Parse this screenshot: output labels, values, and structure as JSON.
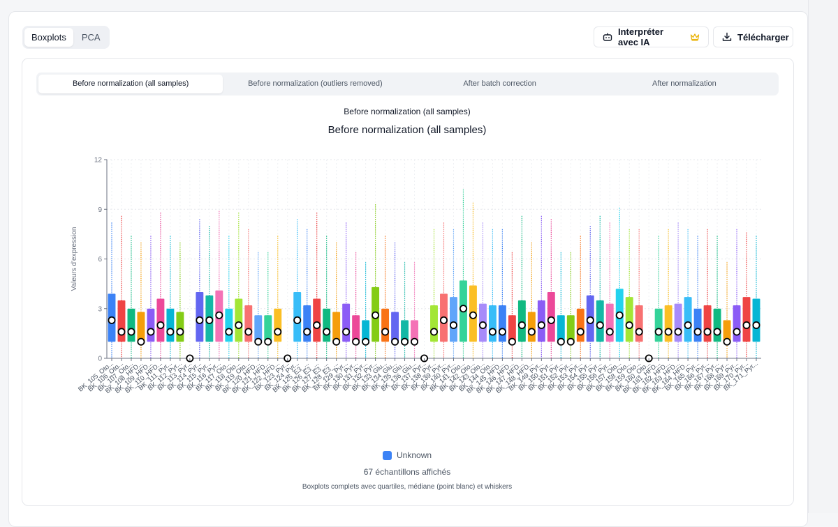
{
  "view_tabs": [
    {
      "label": "Boxplots",
      "active": true
    },
    {
      "label": "PCA",
      "active": false
    }
  ],
  "actions": {
    "interpret_label": "Interpréter avec IA",
    "download_label": "Télécharger",
    "crown_color": "#eab308"
  },
  "sub_tabs": [
    {
      "label": "Before normalization (all samples)",
      "active": true
    },
    {
      "label": "Before normalization (outliers removed)",
      "active": false
    },
    {
      "label": "After batch correction",
      "active": false
    },
    {
      "label": "After normalization",
      "active": false
    }
  ],
  "chart_header": {
    "small_title": "Before normalization (all samples)"
  },
  "legend": {
    "label": "Unknown",
    "color": "#3b82f6"
  },
  "footer": {
    "count": "67 échantillons affichés",
    "note": "Boxplots complets avec quartiles, médiane (point blanc) et whiskers"
  },
  "chart_data": {
    "type": "boxplot",
    "title": "Before normalization (all samples)",
    "xlabel": "",
    "ylabel": "Valeurs d'expression",
    "ylim": [
      0,
      12
    ],
    "yticks": [
      0,
      3,
      6,
      9,
      12
    ],
    "grid": true,
    "legend_position": "bottom",
    "categories": [
      "BK_105_Oto...",
      "BK_106_Oto...",
      "BK_107_Oto...",
      "BK_108_HFD...",
      "BK_109_HFD...",
      "BK_110_HFD...",
      "BK_111_Pyr...",
      "BK_112_Pyr...",
      "BK_113_Pyr...",
      "BK_114_Pyr...",
      "BK_115_Pyr...",
      "BK_116_Pyr...",
      "BK_117_Oto...",
      "BK_118_Oto...",
      "BK_119_Oto...",
      "BK_120_HFD...",
      "BK_121_HFD...",
      "BK_122_HFD...",
      "BK_123_Pyr...",
      "BK_124_Pyr...",
      "BK_125_E3_...",
      "BK_126_E3_...",
      "BK_127_E3_...",
      "BK_128_E3_...",
      "BK_129_Pyr...",
      "BK_130_Pyr...",
      "BK_131_Pyr...",
      "BK_132_Pyr...",
      "BK_133_Glu...",
      "BK_134_Glu...",
      "BK_135_Glu...",
      "BK_136_Glu...",
      "BK_137_Pyr...",
      "BK_138_Pyr...",
      "BK_139_Pyr...",
      "BK_140_Pyr...",
      "BK_141_Oto...",
      "BK_142_Oto...",
      "BK_143_Oto...",
      "BK_144_Oto...",
      "BK_145_HFD...",
      "BK_146_HFD...",
      "BK_147_HFD...",
      "BK_148_HFD...",
      "BK_149_Pyr...",
      "BK_150_Pyr...",
      "BK_151_Pyr...",
      "BK_152_Pyr...",
      "BK_153_Pyr...",
      "BK_154_Pyr...",
      "BK_155_Pyr...",
      "BK_156_Pyr...",
      "BK_157_Oto...",
      "BK_158_Oto...",
      "BK_159_Oto...",
      "BK_160_Oto...",
      "BK_161_HFD...",
      "BK_162_HFD...",
      "BK_163_HFD...",
      "BK_164_HFD...",
      "BK_165_Pyr...",
      "BK_166_Pyr...",
      "BK_167_Pyr...",
      "BK_168_Pyr...",
      "BK_169_Pyr...",
      "BK_170_Pyr...",
      "BK_171_Pyr..."
    ],
    "series": [
      {
        "boxes": [
          {
            "min": 0,
            "q1": 1.0,
            "median": 2.3,
            "q3": 3.9,
            "max": 8.2,
            "color": "#3b82f6"
          },
          {
            "min": 0,
            "q1": 1.0,
            "median": 1.6,
            "q3": 3.5,
            "max": 8.6,
            "color": "#ef4444"
          },
          {
            "min": 0,
            "q1": 1.0,
            "median": 1.6,
            "q3": 3.0,
            "max": 7.4,
            "color": "#10b981"
          },
          {
            "min": 0,
            "q1": 1.0,
            "median": 1.0,
            "q3": 2.8,
            "max": 7.0,
            "color": "#f59e0b"
          },
          {
            "min": 0,
            "q1": 1.0,
            "median": 1.6,
            "q3": 3.0,
            "max": 7.4,
            "color": "#8b5cf6"
          },
          {
            "min": 0,
            "q1": 1.0,
            "median": 2.0,
            "q3": 3.6,
            "max": 8.8,
            "color": "#ec4899"
          },
          {
            "min": 0,
            "q1": 1.0,
            "median": 1.6,
            "q3": 3.0,
            "max": 7.4,
            "color": "#06b6d4"
          },
          {
            "min": 0,
            "q1": 1.0,
            "median": 1.6,
            "q3": 2.8,
            "max": 7.0,
            "color": "#84cc16"
          },
          {
            "min": 0,
            "q1": 0,
            "median": 0,
            "q3": 0,
            "max": 0,
            "color": "#f97316"
          },
          {
            "min": 0,
            "q1": 1.0,
            "median": 2.3,
            "q3": 4.0,
            "max": 8.4,
            "color": "#6366f1"
          },
          {
            "min": 0,
            "q1": 1.0,
            "median": 2.3,
            "q3": 3.8,
            "max": 8.0,
            "color": "#14b8a6"
          },
          {
            "min": 0,
            "q1": 1.0,
            "median": 2.6,
            "q3": 4.1,
            "max": 8.9,
            "color": "#f472b6"
          },
          {
            "min": 0,
            "q1": 1.0,
            "median": 1.6,
            "q3": 3.0,
            "max": 7.4,
            "color": "#22d3ee"
          },
          {
            "min": 0,
            "q1": 1.0,
            "median": 2.0,
            "q3": 3.6,
            "max": 8.8,
            "color": "#a3e635"
          },
          {
            "min": 0,
            "q1": 1.0,
            "median": 1.6,
            "q3": 3.2,
            "max": 7.8,
            "color": "#f87171"
          },
          {
            "min": 0,
            "q1": 1.0,
            "median": 1.0,
            "q3": 2.6,
            "max": 6.4,
            "color": "#60a5fa"
          },
          {
            "min": 0,
            "q1": 1.0,
            "median": 1.0,
            "q3": 2.6,
            "max": 6.4,
            "color": "#34d399"
          },
          {
            "min": 0,
            "q1": 1.0,
            "median": 1.6,
            "q3": 3.0,
            "max": 7.4,
            "color": "#fbbf24"
          },
          {
            "min": 0,
            "q1": 0,
            "median": 0,
            "q3": 0,
            "max": 0,
            "color": "#a78bfa"
          },
          {
            "min": 0,
            "q1": 1.0,
            "median": 2.3,
            "q3": 4.0,
            "max": 8.4,
            "color": "#38bdf8"
          },
          {
            "min": 0,
            "q1": 1.0,
            "median": 1.6,
            "q3": 3.2,
            "max": 7.8,
            "color": "#3b82f6"
          },
          {
            "min": 0,
            "q1": 1.0,
            "median": 2.0,
            "q3": 3.6,
            "max": 8.8,
            "color": "#ef4444"
          },
          {
            "min": 0,
            "q1": 1.0,
            "median": 1.6,
            "q3": 3.0,
            "max": 7.4,
            "color": "#10b981"
          },
          {
            "min": 0,
            "q1": 1.0,
            "median": 1.0,
            "q3": 2.8,
            "max": 7.0,
            "color": "#f59e0b"
          },
          {
            "min": 0,
            "q1": 1.0,
            "median": 1.6,
            "q3": 3.3,
            "max": 8.2,
            "color": "#8b5cf6"
          },
          {
            "min": 0,
            "q1": 1.0,
            "median": 1.0,
            "q3": 2.6,
            "max": 6.4,
            "color": "#ec4899"
          },
          {
            "min": 0,
            "q1": 1.0,
            "median": 1.0,
            "q3": 2.3,
            "max": 5.8,
            "color": "#06b6d4"
          },
          {
            "min": 0,
            "q1": 1.0,
            "median": 2.6,
            "q3": 4.3,
            "max": 9.3,
            "color": "#84cc16"
          },
          {
            "min": 0,
            "q1": 1.0,
            "median": 1.6,
            "q3": 3.0,
            "max": 7.4,
            "color": "#f97316"
          },
          {
            "min": 0,
            "q1": 1.0,
            "median": 1.0,
            "q3": 2.8,
            "max": 7.0,
            "color": "#6366f1"
          },
          {
            "min": 0,
            "q1": 1.0,
            "median": 1.0,
            "q3": 2.3,
            "max": 5.8,
            "color": "#14b8a6"
          },
          {
            "min": 0,
            "q1": 1.0,
            "median": 1.0,
            "q3": 2.3,
            "max": 5.8,
            "color": "#f472b6"
          },
          {
            "min": 0,
            "q1": 0,
            "median": 0,
            "q3": 0,
            "max": 0,
            "color": "#22d3ee"
          },
          {
            "min": 0,
            "q1": 1.0,
            "median": 1.6,
            "q3": 3.2,
            "max": 7.8,
            "color": "#a3e635"
          },
          {
            "min": 0,
            "q1": 1.0,
            "median": 2.3,
            "q3": 3.9,
            "max": 8.2,
            "color": "#f87171"
          },
          {
            "min": 0,
            "q1": 1.0,
            "median": 2.0,
            "q3": 3.7,
            "max": 7.8,
            "color": "#60a5fa"
          },
          {
            "min": 0,
            "q1": 1.0,
            "median": 3.0,
            "q3": 4.7,
            "max": 10.2,
            "color": "#34d399"
          },
          {
            "min": 0,
            "q1": 1.0,
            "median": 2.6,
            "q3": 4.4,
            "max": 9.4,
            "color": "#fbbf24"
          },
          {
            "min": 0,
            "q1": 1.0,
            "median": 2.0,
            "q3": 3.3,
            "max": 8.2,
            "color": "#a78bfa"
          },
          {
            "min": 0,
            "q1": 1.0,
            "median": 1.6,
            "q3": 3.2,
            "max": 7.8,
            "color": "#38bdf8"
          },
          {
            "min": 0,
            "q1": 1.0,
            "median": 1.6,
            "q3": 3.2,
            "max": 7.8,
            "color": "#3b82f6"
          },
          {
            "min": 0,
            "q1": 1.0,
            "median": 1.0,
            "q3": 2.6,
            "max": 6.4,
            "color": "#ef4444"
          },
          {
            "min": 0,
            "q1": 1.0,
            "median": 2.0,
            "q3": 3.5,
            "max": 8.6,
            "color": "#10b981"
          },
          {
            "min": 0,
            "q1": 1.0,
            "median": 1.6,
            "q3": 2.8,
            "max": 7.0,
            "color": "#f59e0b"
          },
          {
            "min": 0,
            "q1": 1.0,
            "median": 2.0,
            "q3": 3.5,
            "max": 8.6,
            "color": "#8b5cf6"
          },
          {
            "min": 0,
            "q1": 1.0,
            "median": 2.3,
            "q3": 4.0,
            "max": 8.4,
            "color": "#ec4899"
          },
          {
            "min": 0,
            "q1": 1.0,
            "median": 1.0,
            "q3": 2.6,
            "max": 6.4,
            "color": "#06b6d4"
          },
          {
            "min": 0,
            "q1": 1.0,
            "median": 1.0,
            "q3": 2.6,
            "max": 6.4,
            "color": "#84cc16"
          },
          {
            "min": 0,
            "q1": 1.0,
            "median": 1.6,
            "q3": 3.0,
            "max": 7.4,
            "color": "#f97316"
          },
          {
            "min": 0,
            "q1": 1.0,
            "median": 2.3,
            "q3": 3.8,
            "max": 8.0,
            "color": "#6366f1"
          },
          {
            "min": 0,
            "q1": 1.0,
            "median": 2.0,
            "q3": 3.5,
            "max": 8.6,
            "color": "#14b8a6"
          },
          {
            "min": 0,
            "q1": 1.0,
            "median": 1.6,
            "q3": 3.3,
            "max": 8.2,
            "color": "#f472b6"
          },
          {
            "min": 0,
            "q1": 1.0,
            "median": 2.6,
            "q3": 4.2,
            "max": 9.1,
            "color": "#22d3ee"
          },
          {
            "min": 0,
            "q1": 1.0,
            "median": 2.0,
            "q3": 3.7,
            "max": 7.8,
            "color": "#a3e635"
          },
          {
            "min": 0,
            "q1": 1.0,
            "median": 1.6,
            "q3": 3.2,
            "max": 7.8,
            "color": "#f87171"
          },
          {
            "min": 0,
            "q1": 0,
            "median": 0,
            "q3": 0,
            "max": 0,
            "color": "#60a5fa"
          },
          {
            "min": 0,
            "q1": 1.0,
            "median": 1.6,
            "q3": 3.0,
            "max": 7.4,
            "color": "#34d399"
          },
          {
            "min": 0,
            "q1": 1.0,
            "median": 1.6,
            "q3": 3.2,
            "max": 7.8,
            "color": "#fbbf24"
          },
          {
            "min": 0,
            "q1": 1.0,
            "median": 1.6,
            "q3": 3.3,
            "max": 8.2,
            "color": "#a78bfa"
          },
          {
            "min": 0,
            "q1": 1.0,
            "median": 2.0,
            "q3": 3.7,
            "max": 7.8,
            "color": "#38bdf8"
          },
          {
            "min": 0,
            "q1": 1.0,
            "median": 1.6,
            "q3": 3.0,
            "max": 7.4,
            "color": "#3b82f6"
          },
          {
            "min": 0,
            "q1": 1.0,
            "median": 1.6,
            "q3": 3.2,
            "max": 7.8,
            "color": "#ef4444"
          },
          {
            "min": 0,
            "q1": 1.0,
            "median": 1.6,
            "q3": 3.0,
            "max": 7.4,
            "color": "#10b981"
          },
          {
            "min": 0,
            "q1": 1.0,
            "median": 1.0,
            "q3": 2.3,
            "max": 5.8,
            "color": "#f59e0b"
          },
          {
            "min": 0,
            "q1": 1.0,
            "median": 1.6,
            "q3": 3.2,
            "max": 7.8,
            "color": "#8b5cf6"
          },
          {
            "min": 0,
            "q1": 1.0,
            "median": 2.0,
            "q3": 3.7,
            "max": 7.6,
            "color": "#ef4444"
          },
          {
            "min": 0,
            "q1": 1.0,
            "median": 2.0,
            "q3": 3.6,
            "max": 7.4,
            "color": "#06b6d4"
          }
        ]
      }
    ]
  }
}
